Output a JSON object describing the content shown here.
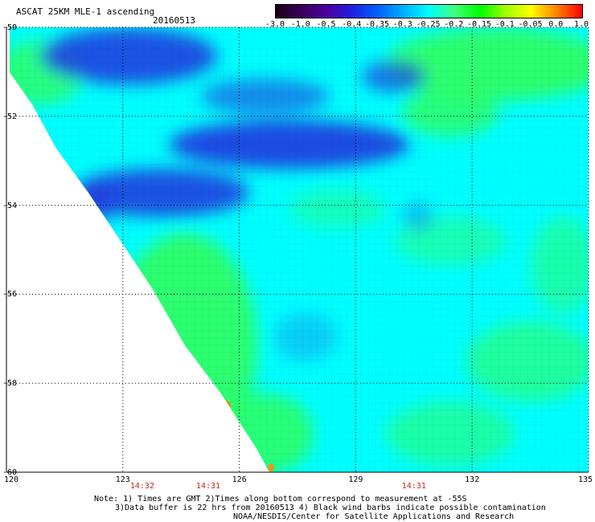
{
  "title": "ASCAT 25KM MLE-1 ascending",
  "date": "20160513",
  "colorbar": {
    "ticks": [
      "-3.0",
      "-1.0",
      "-0.5",
      "-0.4",
      "-0.35",
      "-0.3",
      "-0.25",
      "-0.2",
      "-0.15",
      "-0.1",
      "-0.05",
      "0.0",
      "1.0"
    ],
    "colors": [
      "#1a0014",
      "#3a005a",
      "#4b00a0",
      "#2020e0",
      "#0060ff",
      "#00b0ff",
      "#00ffff",
      "#40ff80",
      "#00ff00",
      "#a0ff00",
      "#ffff00",
      "#ff8000",
      "#ff0000"
    ]
  },
  "map": {
    "lat_labels": [
      "-50",
      "-52",
      "-54",
      "-56",
      "-58",
      "-60"
    ],
    "lat_values": [
      -50,
      -52,
      -54,
      -56,
      -58,
      -60
    ],
    "lon_labels": [
      "120",
      "123",
      "126",
      "129",
      "132",
      "135"
    ],
    "lon_values": [
      120,
      123,
      126,
      129,
      132,
      135
    ],
    "lon_range": [
      120,
      135
    ],
    "lat_range": [
      -50,
      -60
    ],
    "times": [
      {
        "label": "14:32",
        "lon": 123.5
      },
      {
        "label": "14:31",
        "lon": 125.2
      },
      {
        "label": "14:31",
        "lon": 130.5
      }
    ],
    "palette": {
      "ocean_base": "#00ffff",
      "blue": "#2040e0",
      "green": "#30ff60",
      "white": "#ffffff"
    }
  },
  "notes": {
    "line1": "Note: 1) Times are GMT 2)Times along bottom correspond to measurement at -55S",
    "line2": "3)Data buffer is 22 hrs from 20160513 4) Black wind barbs indicate possible contamination",
    "credit": "NOAA/NESDIS/Center for Satellite Applications and Research"
  }
}
